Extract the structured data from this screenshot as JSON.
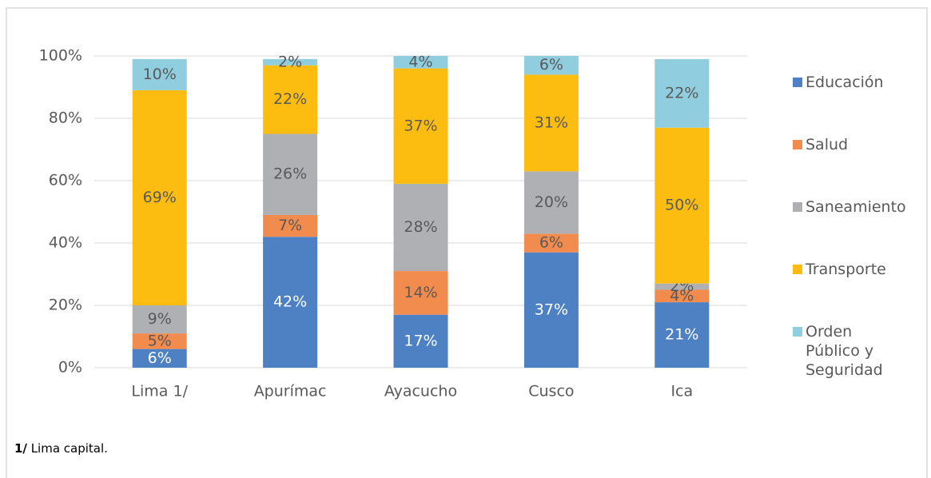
{
  "chart_data": {
    "type": "stacked_bar",
    "categories": [
      "Lima 1/",
      "Apurímac",
      "Ayacucho",
      "Cusco",
      "Ica"
    ],
    "series": [
      {
        "name": "Educación",
        "color": "#4e81c4",
        "label_color": "#ffffff",
        "values": [
          6,
          42,
          17,
          37,
          21
        ],
        "value_labels": [
          "6%",
          "42%",
          "17%",
          "37%",
          "21%"
        ]
      },
      {
        "name": "Salud",
        "color": "#f28c4e",
        "label_color": "#595959",
        "values": [
          5,
          7,
          14,
          6,
          4
        ],
        "value_labels": [
          "5%",
          "7%",
          "14%",
          "6%",
          "4%"
        ]
      },
      {
        "name": "Saneamiento",
        "color": "#afb0b3",
        "label_color": "#595959",
        "values": [
          9,
          26,
          28,
          20,
          2
        ],
        "value_labels": [
          "9%",
          "26%",
          "28%",
          "20%",
          "2%"
        ]
      },
      {
        "name": "Transporte",
        "color": "#fdbd10",
        "label_color": "#595959",
        "values": [
          69,
          22,
          37,
          31,
          50
        ],
        "value_labels": [
          "69%",
          "22%",
          "37%",
          "31%",
          "50%"
        ]
      },
      {
        "name": "Orden Público y Seguridad",
        "color": "#90cedf",
        "label_color": "#595959",
        "values": [
          10,
          2,
          4,
          6,
          22
        ],
        "value_labels": [
          "10%",
          "2%",
          "4%",
          "6%",
          "22%"
        ]
      }
    ],
    "ylim": [
      0,
      100
    ],
    "yticks": [
      {
        "value": 0,
        "label": "0%"
      },
      {
        "value": 20,
        "label": "20%"
      },
      {
        "value": 40,
        "label": "40%"
      },
      {
        "value": 60,
        "label": "60%"
      },
      {
        "value": 80,
        "label": "80%"
      },
      {
        "value": 100,
        "label": "100%"
      }
    ],
    "grid": true,
    "legend": "right",
    "footnote": {
      "marker": "1/",
      "text": "Lima capital."
    }
  }
}
